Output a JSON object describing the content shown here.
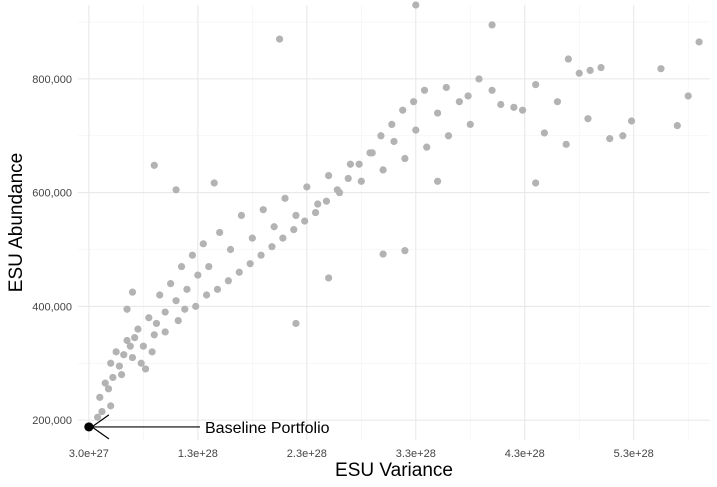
{
  "chart_data": {
    "type": "scatter",
    "title": "",
    "xlabel": "ESU Variance",
    "ylabel": "ESU Abundance",
    "xlim": [
      2e+27,
      6e+28
    ],
    "ylim": [
      165000,
      930000
    ],
    "x_ticks": [
      {
        "value": 3e+27,
        "label": "3.0e+27"
      },
      {
        "value": 1.3e+28,
        "label": "1.3e+28"
      },
      {
        "value": 2.3e+28,
        "label": "2.3e+28"
      },
      {
        "value": 3.3e+28,
        "label": "3.3e+28"
      },
      {
        "value": 4.3e+28,
        "label": "4.3e+28"
      },
      {
        "value": 5.3e+28,
        "label": "5.3e+28"
      }
    ],
    "y_ticks": [
      {
        "value": 200000,
        "label": "200,000"
      },
      {
        "value": 400000,
        "label": "400,000"
      },
      {
        "value": 600000,
        "label": "600,000"
      },
      {
        "value": 800000,
        "label": "800,000"
      }
    ],
    "grid": true,
    "legend": "none",
    "point_color": "#b3b3b3",
    "highlight_color": "#000000",
    "highlight": {
      "x": 3e+27,
      "y": 188000
    },
    "annotation": {
      "label": "Baseline Portfolio",
      "x": 3e+27,
      "y": 188000
    },
    "points": [
      {
        "x": 4e+27,
        "y": 240000
      },
      {
        "x": 4.5e+27,
        "y": 265000
      },
      {
        "x": 5e+27,
        "y": 300000
      },
      {
        "x": 5.5e+27,
        "y": 320000
      },
      {
        "x": 6e+27,
        "y": 280000
      },
      {
        "x": 6.5e+27,
        "y": 340000
      },
      {
        "x": 7e+27,
        "y": 310000
      },
      {
        "x": 7.5e+27,
        "y": 360000
      },
      {
        "x": 8e+27,
        "y": 330000
      },
      {
        "x": 8.5e+27,
        "y": 380000
      },
      {
        "x": 9e+27,
        "y": 350000
      },
      {
        "x": 9.5e+27,
        "y": 420000
      },
      {
        "x": 1e+28,
        "y": 390000
      },
      {
        "x": 1.05e+28,
        "y": 440000
      },
      {
        "x": 1.1e+28,
        "y": 410000
      },
      {
        "x": 1.15e+28,
        "y": 470000
      },
      {
        "x": 1.2e+28,
        "y": 430000
      },
      {
        "x": 1.25e+28,
        "y": 490000
      },
      {
        "x": 1.3e+28,
        "y": 455000
      },
      {
        "x": 1.35e+28,
        "y": 510000
      },
      {
        "x": 1.4e+28,
        "y": 470000
      },
      {
        "x": 1.5e+28,
        "y": 530000
      },
      {
        "x": 1.6e+28,
        "y": 500000
      },
      {
        "x": 1.7e+28,
        "y": 560000
      },
      {
        "x": 1.8e+28,
        "y": 520000
      },
      {
        "x": 1.9e+28,
        "y": 570000
      },
      {
        "x": 2e+28,
        "y": 540000
      },
      {
        "x": 2.1e+28,
        "y": 590000
      },
      {
        "x": 2.2e+28,
        "y": 560000
      },
      {
        "x": 2.3e+28,
        "y": 610000
      },
      {
        "x": 2.4e+28,
        "y": 580000
      },
      {
        "x": 2.5e+28,
        "y": 630000
      },
      {
        "x": 2.6e+28,
        "y": 600000
      },
      {
        "x": 2.7e+28,
        "y": 650000
      },
      {
        "x": 2.8e+28,
        "y": 620000
      },
      {
        "x": 2.9e+28,
        "y": 670000
      },
      {
        "x": 3e+28,
        "y": 640000
      },
      {
        "x": 3.1e+28,
        "y": 690000
      },
      {
        "x": 3.2e+28,
        "y": 660000
      },
      {
        "x": 3.3e+28,
        "y": 710000
      },
      {
        "x": 3.4e+28,
        "y": 680000
      },
      {
        "x": 3.5e+28,
        "y": 740000
      },
      {
        "x": 3.6e+28,
        "y": 700000
      },
      {
        "x": 3.7e+28,
        "y": 760000
      },
      {
        "x": 3.8e+28,
        "y": 720000
      },
      {
        "x": 4e+28,
        "y": 780000
      },
      {
        "x": 4.2e+28,
        "y": 750000
      },
      {
        "x": 4.4e+28,
        "y": 790000
      },
      {
        "x": 4.6e+28,
        "y": 760000
      },
      {
        "x": 4.8e+28,
        "y": 810000
      },
      {
        "x": 5e+28,
        "y": 820000
      },
      {
        "x": 5.2e+28,
        "y": 700000
      },
      {
        "x": 3.3e+28,
        "y": 930000
      },
      {
        "x": 4e+28,
        "y": 895000
      },
      {
        "x": 2.05e+28,
        "y": 870000
      },
      {
        "x": 5.9e+28,
        "y": 865000
      },
      {
        "x": 5.7e+28,
        "y": 718000
      },
      {
        "x": 5.8e+28,
        "y": 770000
      },
      {
        "x": 5.55e+28,
        "y": 818000
      },
      {
        "x": 4.4e+28,
        "y": 617000
      },
      {
        "x": 3.5e+28,
        "y": 620000
      },
      {
        "x": 3e+28,
        "y": 492000
      },
      {
        "x": 3.2e+28,
        "y": 498000
      },
      {
        "x": 2.2e+28,
        "y": 370000
      },
      {
        "x": 2.5e+28,
        "y": 450000
      },
      {
        "x": 1.45e+28,
        "y": 617000
      },
      {
        "x": 9e+27,
        "y": 648000
      },
      {
        "x": 1.1e+28,
        "y": 605000
      },
      {
        "x": 7e+27,
        "y": 425000
      },
      {
        "x": 6.5e+27,
        "y": 395000
      },
      {
        "x": 5e+27,
        "y": 225000
      },
      {
        "x": 4.2e+27,
        "y": 215000
      },
      {
        "x": 3.8e+27,
        "y": 205000
      },
      {
        "x": 4.8e+27,
        "y": 255000
      },
      {
        "x": 5.2e+27,
        "y": 275000
      },
      {
        "x": 5.8e+27,
        "y": 295000
      },
      {
        "x": 6.2e+27,
        "y": 315000
      },
      {
        "x": 6.8e+27,
        "y": 330000
      },
      {
        "x": 7.2e+27,
        "y": 345000
      },
      {
        "x": 7.8e+27,
        "y": 300000
      },
      {
        "x": 8.2e+27,
        "y": 290000
      },
      {
        "x": 8.8e+27,
        "y": 320000
      },
      {
        "x": 9.2e+27,
        "y": 370000
      },
      {
        "x": 1e+28,
        "y": 355000
      },
      {
        "x": 1.12e+28,
        "y": 375000
      },
      {
        "x": 1.18e+28,
        "y": 395000
      },
      {
        "x": 1.28e+28,
        "y": 400000
      },
      {
        "x": 1.38e+28,
        "y": 420000
      },
      {
        "x": 1.48e+28,
        "y": 430000
      },
      {
        "x": 1.58e+28,
        "y": 445000
      },
      {
        "x": 1.68e+28,
        "y": 460000
      },
      {
        "x": 1.78e+28,
        "y": 475000
      },
      {
        "x": 1.88e+28,
        "y": 490000
      },
      {
        "x": 1.98e+28,
        "y": 505000
      },
      {
        "x": 2.08e+28,
        "y": 520000
      },
      {
        "x": 2.18e+28,
        "y": 535000
      },
      {
        "x": 2.28e+28,
        "y": 550000
      },
      {
        "x": 2.38e+28,
        "y": 565000
      },
      {
        "x": 2.48e+28,
        "y": 585000
      },
      {
        "x": 2.58e+28,
        "y": 605000
      },
      {
        "x": 2.68e+28,
        "y": 625000
      },
      {
        "x": 2.78e+28,
        "y": 650000
      },
      {
        "x": 2.88e+28,
        "y": 670000
      },
      {
        "x": 2.98e+28,
        "y": 700000
      },
      {
        "x": 3.08e+28,
        "y": 720000
      },
      {
        "x": 3.18e+28,
        "y": 745000
      },
      {
        "x": 3.28e+28,
        "y": 760000
      },
      {
        "x": 3.38e+28,
        "y": 780000
      },
      {
        "x": 3.58e+28,
        "y": 785000
      },
      {
        "x": 3.78e+28,
        "y": 770000
      },
      {
        "x": 3.88e+28,
        "y": 800000
      },
      {
        "x": 4.08e+28,
        "y": 755000
      },
      {
        "x": 4.28e+28,
        "y": 745000
      },
      {
        "x": 4.48e+28,
        "y": 705000
      },
      {
        "x": 4.68e+28,
        "y": 685000
      },
      {
        "x": 4.88e+28,
        "y": 730000
      },
      {
        "x": 5.08e+28,
        "y": 695000
      },
      {
        "x": 5.28e+28,
        "y": 726000
      },
      {
        "x": 4.9e+28,
        "y": 815000
      },
      {
        "x": 4.7e+28,
        "y": 835000
      }
    ]
  }
}
